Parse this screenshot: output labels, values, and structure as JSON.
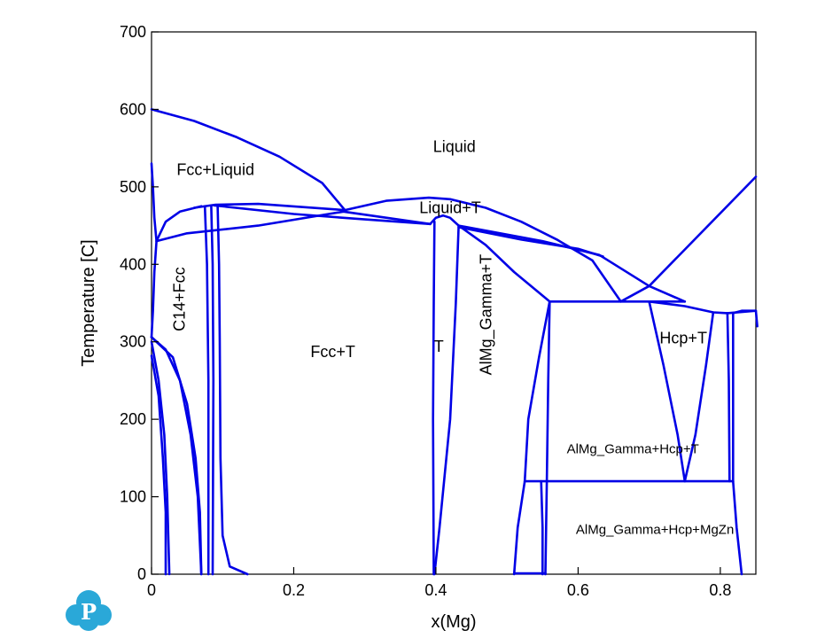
{
  "chart_data": {
    "type": "line",
    "title": "",
    "xlabel": "x(Mg)",
    "ylabel": "Temperature [C]",
    "xlim": [
      0,
      0.85
    ],
    "ylim": [
      0,
      700
    ],
    "x_ticks": [
      {
        "value": 0,
        "label": "0"
      },
      {
        "value": 0.2,
        "label": "0.2"
      },
      {
        "value": 0.4,
        "label": "0.4"
      },
      {
        "value": 0.6,
        "label": "0.6"
      },
      {
        "value": 0.8,
        "label": "0.8"
      }
    ],
    "y_ticks": [
      {
        "value": 0,
        "label": "0"
      },
      {
        "value": 100,
        "label": "100"
      },
      {
        "value": 200,
        "label": "200"
      },
      {
        "value": 300,
        "label": "300"
      },
      {
        "value": 400,
        "label": "400"
      },
      {
        "value": 500,
        "label": "500"
      },
      {
        "value": 600,
        "label": "600"
      },
      {
        "value": 700,
        "label": "700"
      }
    ],
    "grid": false,
    "line_color": "#0000e6",
    "phase_regions": [
      {
        "label": "Liquid",
        "x": 0.426,
        "y": 545,
        "rotate": 0,
        "size": 18
      },
      {
        "label": "Fcc+Liquid",
        "x": 0.09,
        "y": 515,
        "rotate": 0,
        "size": 18
      },
      {
        "label": "Liquid+T",
        "x": 0.42,
        "y": 466,
        "rotate": 0,
        "size": 18
      },
      {
        "label": "C14+Fcc",
        "x": 0.047,
        "y": 355,
        "rotate": -90,
        "size": 18
      },
      {
        "label": "Fcc+T",
        "x": 0.255,
        "y": 280,
        "rotate": 0,
        "size": 18
      },
      {
        "label": "T",
        "x": 0.404,
        "y": 287,
        "rotate": 0,
        "size": 18
      },
      {
        "label": "AlMg_Gamma+T",
        "x": 0.478,
        "y": 335,
        "rotate": -90,
        "size": 18
      },
      {
        "label": "Hcp+T",
        "x": 0.748,
        "y": 298,
        "rotate": 0,
        "size": 18
      },
      {
        "label": "AlMg_Gamma+Hcp+T",
        "x": 0.677,
        "y": 156,
        "rotate": 0,
        "size": 15
      },
      {
        "label": "AlMg_Gamma+Hcp+MgZn",
        "x": 0.708,
        "y": 52,
        "rotate": 0,
        "size": 15
      }
    ],
    "phase_boundaries": [
      {
        "name": "liquidus-fcc",
        "points": [
          [
            0,
            600
          ],
          [
            0.06,
            585
          ],
          [
            0.12,
            564
          ],
          [
            0.18,
            539
          ],
          [
            0.24,
            505
          ],
          [
            0.272,
            470
          ]
        ]
      },
      {
        "name": "solidus-fcc",
        "points": [
          [
            0,
            530
          ],
          [
            0.002,
            500
          ],
          [
            0.004,
            460
          ],
          [
            0.007,
            430
          ]
        ]
      },
      {
        "name": "fcc-solvus",
        "points": [
          [
            0.007,
            430
          ],
          [
            0.004,
            390
          ],
          [
            0.002,
            340
          ],
          [
            0,
            306
          ]
        ]
      },
      {
        "name": "fcc-c14-left",
        "points": [
          [
            0,
            306
          ],
          [
            0.02,
            290
          ],
          [
            0.04,
            250
          ],
          [
            0.055,
            180
          ],
          [
            0.065,
            100
          ],
          [
            0.07,
            0
          ]
        ]
      },
      {
        "name": "fcc-inner-1",
        "points": [
          [
            0,
            300
          ],
          [
            0.01,
            250
          ],
          [
            0.018,
            180
          ],
          [
            0.022,
            100
          ],
          [
            0.025,
            0
          ]
        ]
      },
      {
        "name": "fcc-inner-2",
        "points": [
          [
            0,
            282
          ],
          [
            0.01,
            230
          ],
          [
            0.016,
            150
          ],
          [
            0.02,
            80
          ],
          [
            0.02,
            0
          ]
        ]
      },
      {
        "name": "c14-fcc-line",
        "points": [
          [
            0,
            306
          ],
          [
            0.03,
            280
          ],
          [
            0.05,
            220
          ],
          [
            0.062,
            150
          ],
          [
            0.068,
            80
          ],
          [
            0.07,
            0
          ]
        ]
      },
      {
        "name": "fcc-liquid-to-c14",
        "points": [
          [
            0.007,
            430
          ],
          [
            0.02,
            455
          ],
          [
            0.04,
            468
          ],
          [
            0.07,
            475
          ]
        ]
      },
      {
        "name": "fcc-t-from-fcc",
        "points": [
          [
            0.007,
            430
          ],
          [
            0.05,
            440
          ],
          [
            0.15,
            450
          ],
          [
            0.27,
            468
          ],
          [
            0.392,
            452
          ]
        ]
      },
      {
        "name": "c14-left",
        "points": [
          [
            0.075,
            475
          ],
          [
            0.078,
            400
          ],
          [
            0.08,
            250
          ],
          [
            0.08,
            0
          ]
        ]
      },
      {
        "name": "c14-right",
        "points": [
          [
            0.084,
            475
          ],
          [
            0.086,
            400
          ],
          [
            0.087,
            250
          ],
          [
            0.086,
            0
          ]
        ]
      },
      {
        "name": "t-left",
        "points": [
          [
            0.093,
            476
          ],
          [
            0.095,
            400
          ],
          [
            0.096,
            300
          ],
          [
            0.097,
            150
          ],
          [
            0.1,
            50
          ],
          [
            0.11,
            10
          ],
          [
            0.135,
            0
          ]
        ]
      },
      {
        "name": "liquidus-c14-to-t",
        "points": [
          [
            0.06,
            473
          ],
          [
            0.09,
            477
          ],
          [
            0.15,
            478
          ],
          [
            0.272,
            470
          ]
        ]
      },
      {
        "name": "liquidus-t-dome",
        "points": [
          [
            0.272,
            470
          ],
          [
            0.33,
            482
          ],
          [
            0.39,
            486
          ],
          [
            0.42,
            484
          ],
          [
            0.47,
            473
          ],
          [
            0.52,
            455
          ],
          [
            0.57,
            432
          ],
          [
            0.62,
            405
          ],
          [
            0.66,
            352
          ]
        ]
      },
      {
        "name": "t-dome-inner",
        "points": [
          [
            0.088,
            476
          ],
          [
            0.2,
            465
          ],
          [
            0.3,
            458
          ],
          [
            0.392,
            452
          ]
        ]
      },
      {
        "name": "t-peak-left",
        "points": [
          [
            0.392,
            452
          ],
          [
            0.4,
            460
          ],
          [
            0.41,
            463
          ],
          [
            0.42,
            460
          ],
          [
            0.432,
            450
          ]
        ]
      },
      {
        "name": "t-phase-left",
        "points": [
          [
            0.398,
            455
          ],
          [
            0.397,
            350
          ],
          [
            0.396,
            200
          ],
          [
            0.397,
            0
          ]
        ]
      },
      {
        "name": "t-phase-right",
        "points": [
          [
            0.432,
            450
          ],
          [
            0.428,
            350
          ],
          [
            0.42,
            200
          ],
          [
            0.405,
            60
          ],
          [
            0.398,
            0
          ]
        ]
      },
      {
        "name": "t-gamma-upper",
        "points": [
          [
            0.432,
            450
          ],
          [
            0.47,
            425
          ],
          [
            0.51,
            390
          ],
          [
            0.56,
            352
          ]
        ]
      },
      {
        "name": "t-gamma-lower",
        "points": [
          [
            0.432,
            448
          ],
          [
            0.52,
            432
          ],
          [
            0.6,
            420
          ],
          [
            0.635,
            410
          ]
        ]
      },
      {
        "name": "liquidus-t-right",
        "points": [
          [
            0.432,
            450
          ],
          [
            0.55,
            430
          ],
          [
            0.63,
            412
          ],
          [
            0.7,
            372
          ],
          [
            0.75,
            352
          ]
        ]
      },
      {
        "name": "liquidus-hcp",
        "points": [
          [
            0.66,
            352
          ],
          [
            0.7,
            372
          ],
          [
            0.85,
            513
          ]
        ]
      },
      {
        "name": "eutectic-352",
        "points": [
          [
            0.56,
            352
          ],
          [
            0.66,
            352
          ],
          [
            0.7,
            352
          ],
          [
            0.75,
            352
          ]
        ]
      },
      {
        "name": "gamma-left",
        "points": [
          [
            0.56,
            352
          ],
          [
            0.545,
            280
          ],
          [
            0.53,
            200
          ],
          [
            0.525,
            120
          ]
        ]
      },
      {
        "name": "gamma-right",
        "points": [
          [
            0.56,
            352
          ],
          [
            0.558,
            250
          ],
          [
            0.556,
            120
          ]
        ]
      },
      {
        "name": "hcp-t-left",
        "points": [
          [
            0.7,
            352
          ],
          [
            0.72,
            270
          ],
          [
            0.74,
            180
          ],
          [
            0.75,
            120
          ]
        ]
      },
      {
        "name": "hcp-t-right",
        "points": [
          [
            0.79,
            338
          ],
          [
            0.78,
            270
          ],
          [
            0.765,
            180
          ],
          [
            0.75,
            120
          ]
        ]
      },
      {
        "name": "t-solvus-right",
        "points": [
          [
            0.7,
            352
          ],
          [
            0.75,
            346
          ],
          [
            0.79,
            338
          ],
          [
            0.81,
            337
          ]
        ]
      },
      {
        "name": "hcp-solvus",
        "points": [
          [
            0.81,
            337
          ],
          [
            0.85,
            340
          ]
        ]
      },
      {
        "name": "hcp-left-bound",
        "points": [
          [
            0.81,
            337
          ],
          [
            0.812,
            250
          ],
          [
            0.813,
            120
          ]
        ]
      },
      {
        "name": "hcp-right-bound",
        "points": [
          [
            0.818,
            337
          ],
          [
            0.818,
            250
          ],
          [
            0.818,
            120
          ]
        ]
      },
      {
        "name": "eutectoid-120",
        "points": [
          [
            0.525,
            120
          ],
          [
            0.556,
            120
          ],
          [
            0.75,
            120
          ],
          [
            0.818,
            120
          ]
        ]
      },
      {
        "name": "mgzn-left",
        "points": [
          [
            0.525,
            120
          ],
          [
            0.515,
            60
          ],
          [
            0.51,
            0
          ]
        ]
      },
      {
        "name": "mgzn-mid-1",
        "points": [
          [
            0.548,
            120
          ],
          [
            0.55,
            60
          ],
          [
            0.55,
            0
          ]
        ]
      },
      {
        "name": "mgzn-mid-2",
        "points": [
          [
            0.556,
            120
          ],
          [
            0.555,
            60
          ],
          [
            0.554,
            0
          ]
        ]
      },
      {
        "name": "mgzn-right",
        "points": [
          [
            0.818,
            120
          ],
          [
            0.823,
            60
          ],
          [
            0.83,
            0
          ]
        ]
      },
      {
        "name": "bottom-segment",
        "points": [
          [
            0.51,
            1
          ],
          [
            0.554,
            1
          ]
        ]
      },
      {
        "name": "hcp-top",
        "points": [
          [
            0.818,
            337
          ],
          [
            0.83,
            340
          ],
          [
            0.85,
            340
          ],
          [
            0.852,
            320
          ]
        ]
      }
    ]
  },
  "logo": {
    "letter": "P",
    "color": "#2aa8d8"
  }
}
